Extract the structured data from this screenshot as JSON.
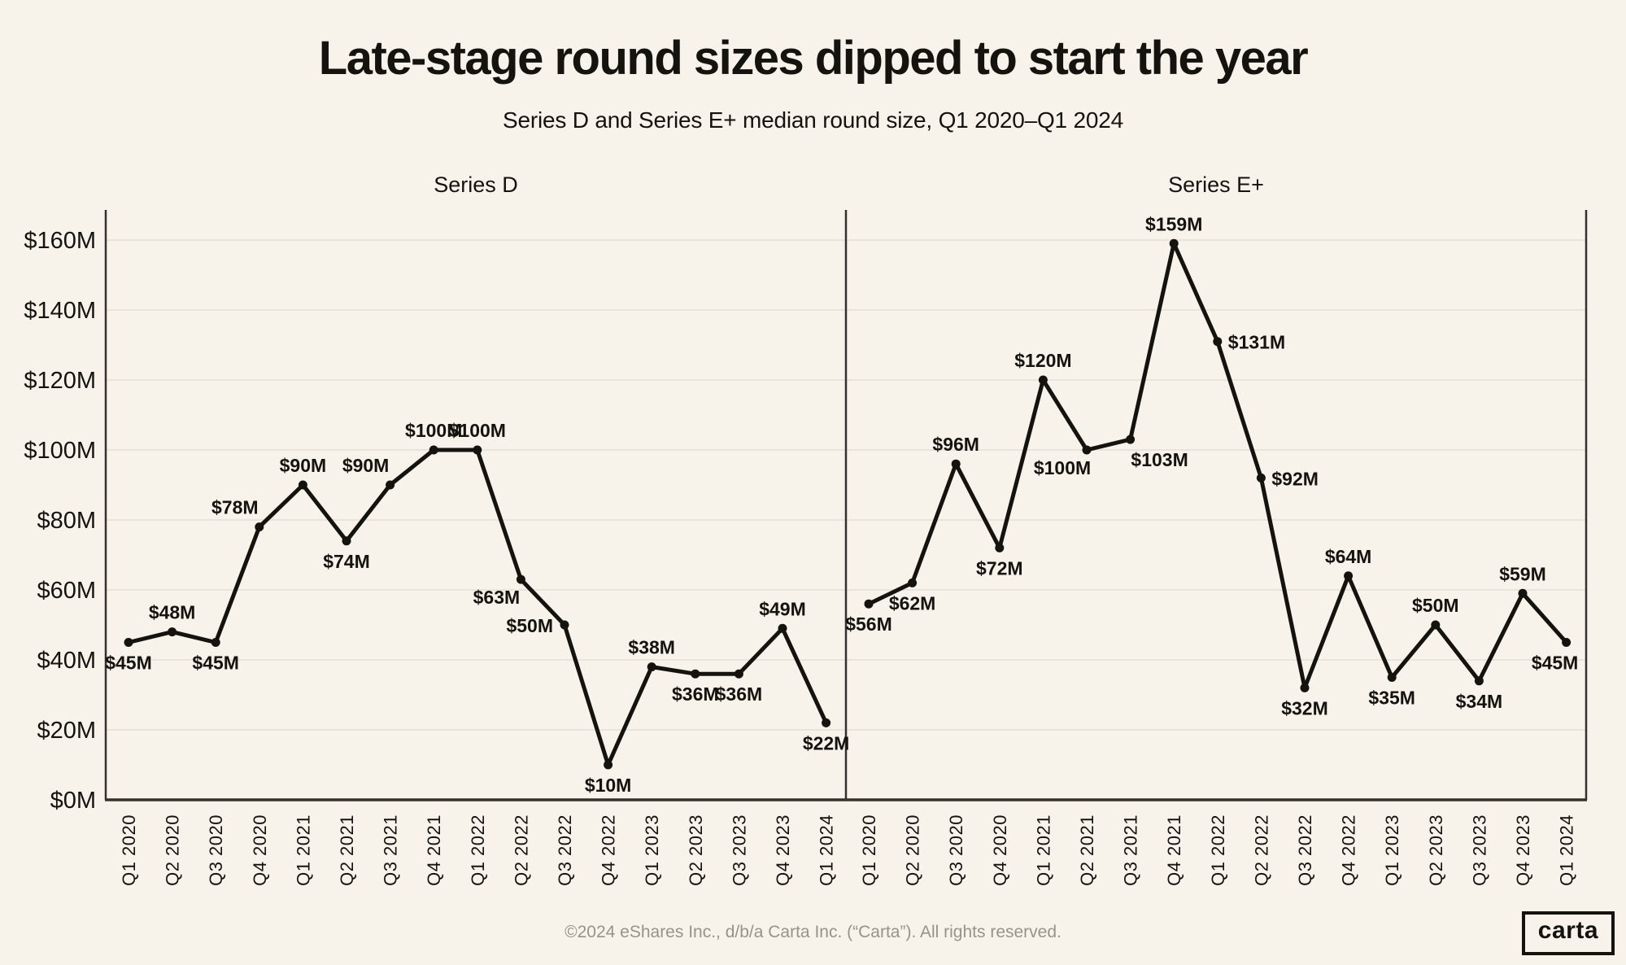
{
  "page": {
    "title": "Late-stage round sizes dipped to start the year",
    "subtitle": "Series D and Series E+ median round size, Q1 2020–Q1 2024",
    "footer": "©2024 eShares Inc., d/b/a Carta Inc. (“Carta”). All rights reserved.",
    "logo_text": "carta"
  },
  "colors": {
    "background": "#F7F3EB",
    "line": "#15130E",
    "grid": "#E4E0D6",
    "axis": "#35322C",
    "text": "#15130E",
    "footer_text": "#97928A"
  },
  "chart_data": {
    "type": "line",
    "title": "Series D and Series E+ median round size, Q1 2020–Q1 2024",
    "categories": [
      "Q1 2020",
      "Q2 2020",
      "Q3 2020",
      "Q4 2020",
      "Q1 2021",
      "Q2 2021",
      "Q3 2021",
      "Q4 2021",
      "Q1 2022",
      "Q2 2022",
      "Q3 2022",
      "Q4 2022",
      "Q1 2023",
      "Q2 2023",
      "Q3 2023",
      "Q4 2023",
      "Q1 2024"
    ],
    "series": [
      {
        "name": "Series D",
        "values": [
          45,
          48,
          45,
          78,
          90,
          74,
          90,
          100,
          100,
          63,
          50,
          10,
          38,
          36,
          36,
          49,
          22
        ],
        "label_positions": [
          "below",
          "above",
          "below",
          "above-left",
          "above",
          "below",
          "above-left",
          "above",
          "above",
          "below-left",
          "left",
          "below",
          "above",
          "below",
          "below",
          "above",
          "below"
        ]
      },
      {
        "name": "Series E+",
        "values": [
          56,
          62,
          96,
          72,
          120,
          100,
          103,
          159,
          131,
          92,
          32,
          64,
          35,
          50,
          34,
          59,
          45
        ],
        "label_positions": [
          "below",
          "below",
          "above",
          "below",
          "above",
          "below-left",
          "below-right",
          "above",
          "right",
          "right",
          "below",
          "above",
          "below",
          "above",
          "below",
          "above",
          "below@-14"
        ]
      }
    ],
    "value_prefix": "$",
    "value_suffix": "M",
    "yticks": [
      0,
      20,
      40,
      60,
      80,
      100,
      120,
      140,
      160
    ],
    "ylim": [
      0,
      165
    ],
    "grid": true,
    "legend_position": "panel-titles"
  }
}
